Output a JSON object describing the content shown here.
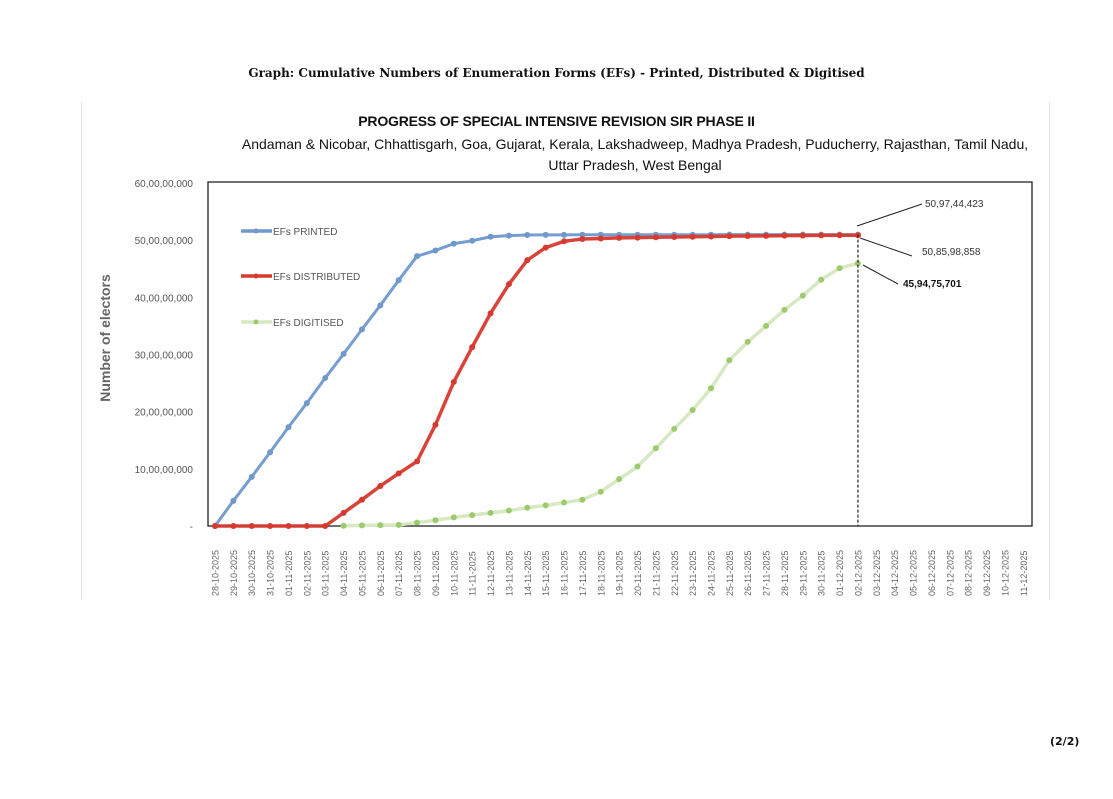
{
  "page": {
    "heading": "Graph: Cumulative Numbers of Enumeration Forms (EFs) - Printed, Distributed & Digitised",
    "page_number": "(2/2)"
  },
  "chart_data": {
    "type": "line",
    "title": "PROGRESS OF SPECIAL INTENSIVE REVISION SIR PHASE II",
    "subtitle": "Andaman & Nicobar, Chhattisgarh, Goa, Gujarat, Kerala, Lakshadweep, Madhya Pradesh, Puducherry, Rajasthan, Tamil Nadu, Uttar Pradesh, West Bengal",
    "xlabel": "",
    "ylabel": "Number of electors",
    "ylim": [
      0,
      600000000
    ],
    "yticks": [
      0,
      100000000,
      200000000,
      300000000,
      400000000,
      500000000,
      600000000
    ],
    "ytick_labels": [
      "-",
      "10,00,00,000",
      "20,00,00,000",
      "30,00,00,000",
      "40,00,00,000",
      "50,00,00,000",
      "60,00,00,000"
    ],
    "grid": false,
    "legend_position": "upper-left-inside",
    "categories": [
      "28-10-2025",
      "29-10-2025",
      "30-10-2025",
      "31-10-2025",
      "01-11-2025",
      "02-11-2025",
      "03-11-2025",
      "04-11-2025",
      "05-11-2025",
      "06-11-2025",
      "07-11-2025",
      "08-11-2025",
      "09-11-2025",
      "10-11-2025",
      "11-11-2025",
      "12-11-2025",
      "13-11-2025",
      "14-11-2025",
      "15-11-2025",
      "16-11-2025",
      "17-11-2025",
      "18-11-2025",
      "19-11-2025",
      "20-11-2025",
      "21-11-2025",
      "22-11-2025",
      "23-11-2025",
      "24-11-2025",
      "25-11-2025",
      "26-11-2025",
      "27-11-2025",
      "28-11-2025",
      "29-11-2025",
      "30-11-2025",
      "01-12-2025",
      "02-12-2025",
      "03-12-2025",
      "04-12-2025",
      "05-12-2025",
      "06-12-2025",
      "07-12-2025",
      "08-12-2025",
      "09-12-2025",
      "10-12-2025",
      "11-12-2025"
    ],
    "series": [
      {
        "name": "EFs PRINTED",
        "color": "#6f98cc",
        "values": [
          0,
          44000000,
          86000000,
          129000000,
          173000000,
          215000000,
          259000000,
          301000000,
          344000000,
          386000000,
          430000000,
          472000000,
          482000000,
          494000000,
          499000000,
          506000000,
          508000000,
          509000000,
          509200000,
          509300000,
          509400000,
          509400000,
          509500000,
          509500000,
          509500000,
          509500000,
          509500000,
          509500000,
          509600000,
          509600000,
          509600000,
          509600000,
          509600000,
          509700000,
          509700000,
          509744423,
          null,
          null,
          null,
          null,
          null,
          null,
          null,
          null,
          null
        ]
      },
      {
        "name": "EFs DISTRIBUTED",
        "color": "#d63a2f",
        "values": [
          0,
          0,
          0,
          0,
          0,
          0,
          0,
          23000000,
          46000000,
          70000000,
          92000000,
          113000000,
          177000000,
          252000000,
          313000000,
          372000000,
          423000000,
          465000000,
          487000000,
          498000000,
          502000000,
          503000000,
          504000000,
          504500000,
          505000000,
          505500000,
          506000000,
          506500000,
          507000000,
          507300000,
          507600000,
          507900000,
          508200000,
          508400000,
          508600000,
          508598858,
          null,
          null,
          null,
          null,
          null,
          null,
          null,
          null,
          null
        ]
      },
      {
        "name": "EFs DIGITISED",
        "color": "#9ccb6c",
        "values": [
          null,
          null,
          null,
          null,
          null,
          null,
          null,
          500000,
          1000000,
          1500000,
          2000000,
          6000000,
          10000000,
          15000000,
          19000000,
          23000000,
          27000000,
          32000000,
          36000000,
          41000000,
          46000000,
          60000000,
          82000000,
          104000000,
          136000000,
          170000000,
          203000000,
          241000000,
          290000000,
          322000000,
          350000000,
          378000000,
          403000000,
          431000000,
          451000000,
          459475701,
          null,
          null,
          null,
          null,
          null,
          null,
          null,
          null,
          null
        ]
      }
    ],
    "annotations": [
      {
        "text": "50,97,44,423",
        "series": "EFs PRINTED",
        "date": "02-12-2025",
        "value": 509744423,
        "bold": false
      },
      {
        "text": "50,85,98,858",
        "series": "EFs DISTRIBUTED",
        "date": "02-12-2025",
        "value": 508598858,
        "bold": false
      },
      {
        "text": "45,94,75,701",
        "series": "EFs DIGITISED",
        "date": "02-12-2025",
        "value": 459475701,
        "bold": true
      }
    ],
    "vertical_marker": {
      "date": "02-12-2025",
      "style": "dashed"
    }
  }
}
